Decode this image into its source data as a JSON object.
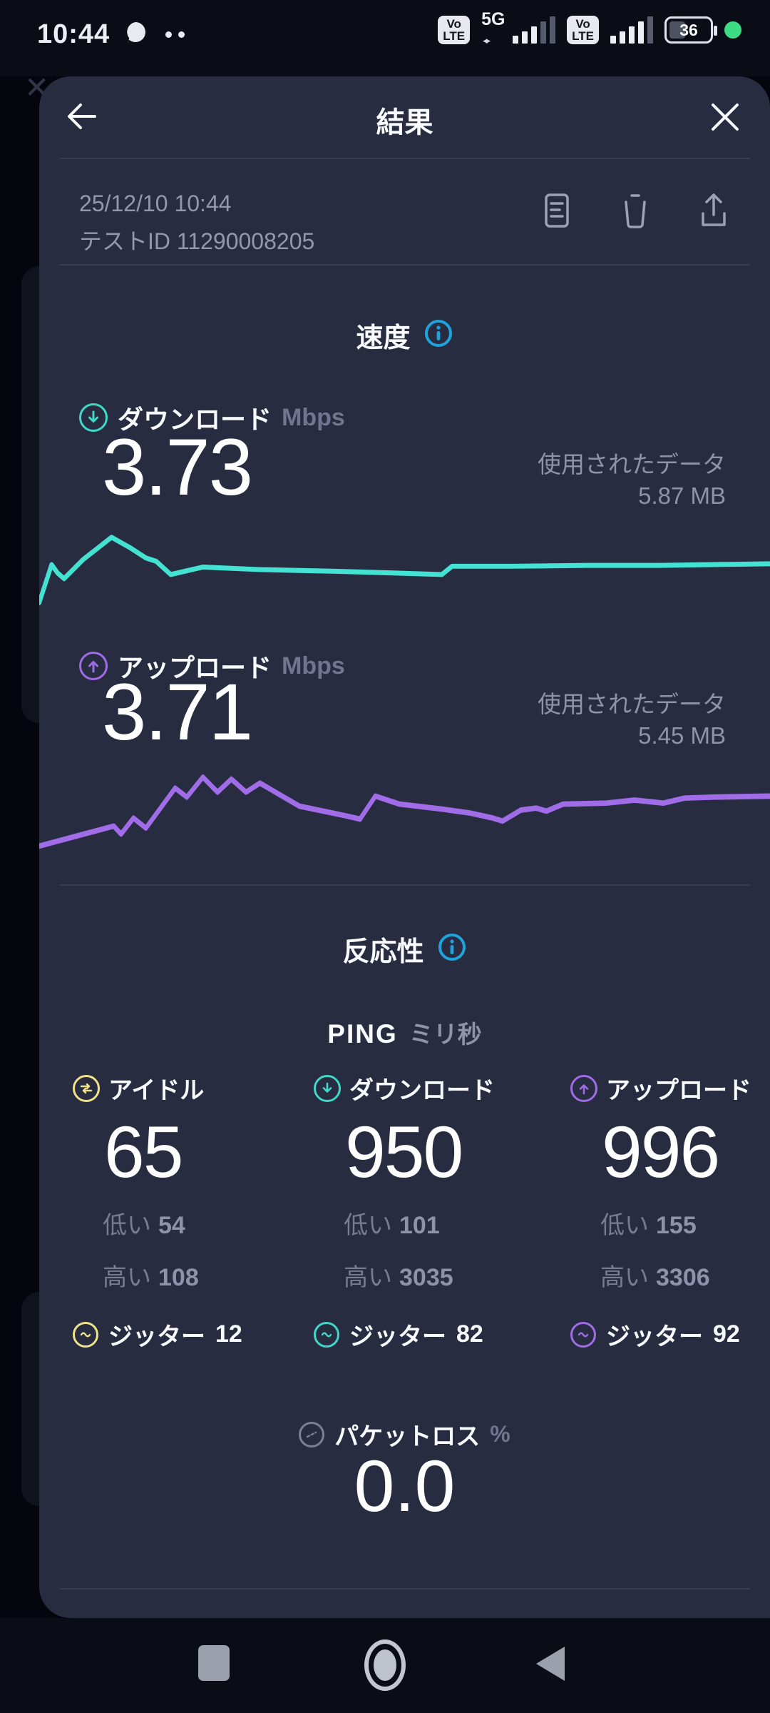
{
  "status_bar": {
    "time": "10:44",
    "volte_line1": "Vo",
    "volte_line2": "LTE",
    "network_type": "5G",
    "battery_percent": "36"
  },
  "header": {
    "title": "結果"
  },
  "meta": {
    "datetime": "25/12/10 10:44",
    "test_id": "テストID 11290008205"
  },
  "speed": {
    "section_title": "速度",
    "download": {
      "label": "ダウンロード",
      "unit": "Mbps",
      "value": "3.73",
      "data_used": "使用されたデータ 5.87 MB"
    },
    "upload": {
      "label": "アップロード",
      "unit": "Mbps",
      "value": "3.71",
      "data_used": "使用されたデータ 5.45 MB"
    }
  },
  "responsiveness": {
    "section_title": "反応性",
    "ping_label": "PING",
    "ping_unit": "ミリ秒",
    "columns": [
      {
        "label": "アイドル",
        "value": "65",
        "low_label": "低い",
        "low": "54",
        "high_label": "高い",
        "high": "108",
        "jitter_label": "ジッター",
        "jitter": "12",
        "color": "#efe387"
      },
      {
        "label": "ダウンロード",
        "value": "950",
        "low_label": "低い",
        "low": "101",
        "high_label": "高い",
        "high": "3035",
        "jitter_label": "ジッター",
        "jitter": "82",
        "color": "#40d8c8"
      },
      {
        "label": "アップロード",
        "value": "996",
        "low_label": "低い",
        "low": "155",
        "high_label": "高い",
        "high": "3306",
        "jitter_label": "ジッター",
        "jitter": "92",
        "color": "#a06ce6"
      }
    ],
    "packet_loss": {
      "label": "パケットロス",
      "unit": "%",
      "value": "0.0"
    }
  },
  "colors": {
    "download_accent": "#44e2d2",
    "upload_accent": "#a06ce8",
    "info_blue": "#1fa3dd",
    "idle_yellow": "#efe387",
    "battery_green": "#3ddc84",
    "sheet_bg": "#282c41",
    "screen_bg": "#0a0c16"
  },
  "icons": [
    "back-arrow",
    "close-x",
    "result-notes",
    "trash",
    "share",
    "info",
    "download-arrow",
    "upload-arrow",
    "idle-transfer",
    "jitter-wave",
    "packet-loss-dash",
    "recents-square",
    "home-circle",
    "back-triangle"
  ],
  "chart_data": [
    {
      "id": "download",
      "type": "line",
      "series_label": "ダウンロード Mbps",
      "color": "#44e2d2",
      "stroke": 6,
      "x_range": [
        0,
        1000
      ],
      "y_range": [
        0,
        100
      ],
      "grid": false,
      "points": [
        [
          0,
          96
        ],
        [
          17,
          50
        ],
        [
          25,
          60
        ],
        [
          34,
          67
        ],
        [
          60,
          44
        ],
        [
          99,
          17
        ],
        [
          125,
          30
        ],
        [
          146,
          42
        ],
        [
          160,
          46
        ],
        [
          180,
          62
        ],
        [
          224,
          53
        ],
        [
          300,
          56
        ],
        [
          400,
          58
        ],
        [
          480,
          60
        ],
        [
          551,
          62
        ],
        [
          565,
          52
        ],
        [
          650,
          52
        ],
        [
          750,
          51
        ],
        [
          850,
          51
        ],
        [
          1000,
          49
        ]
      ]
    },
    {
      "id": "upload",
      "type": "line",
      "series_label": "アップロード Mbps",
      "color": "#a06ce8",
      "stroke": 5.5,
      "x_range": [
        0,
        1000
      ],
      "y_range": [
        0,
        100
      ],
      "grid": false,
      "points": [
        [
          0,
          81
        ],
        [
          102,
          61
        ],
        [
          112,
          69
        ],
        [
          129,
          53
        ],
        [
          146,
          63
        ],
        [
          186,
          23
        ],
        [
          202,
          32
        ],
        [
          224,
          12
        ],
        [
          244,
          27
        ],
        [
          263,
          14
        ],
        [
          283,
          27
        ],
        [
          302,
          18
        ],
        [
          356,
          41
        ],
        [
          415,
          50
        ],
        [
          439,
          54
        ],
        [
          460,
          31
        ],
        [
          493,
          39
        ],
        [
          551,
          44
        ],
        [
          590,
          48
        ],
        [
          621,
          53
        ],
        [
          634,
          56
        ],
        [
          659,
          45
        ],
        [
          680,
          43
        ],
        [
          694,
          46
        ],
        [
          717,
          39
        ],
        [
          776,
          38
        ],
        [
          815,
          35
        ],
        [
          854,
          38
        ],
        [
          883,
          33
        ],
        [
          922,
          32
        ],
        [
          1000,
          31
        ]
      ]
    }
  ]
}
